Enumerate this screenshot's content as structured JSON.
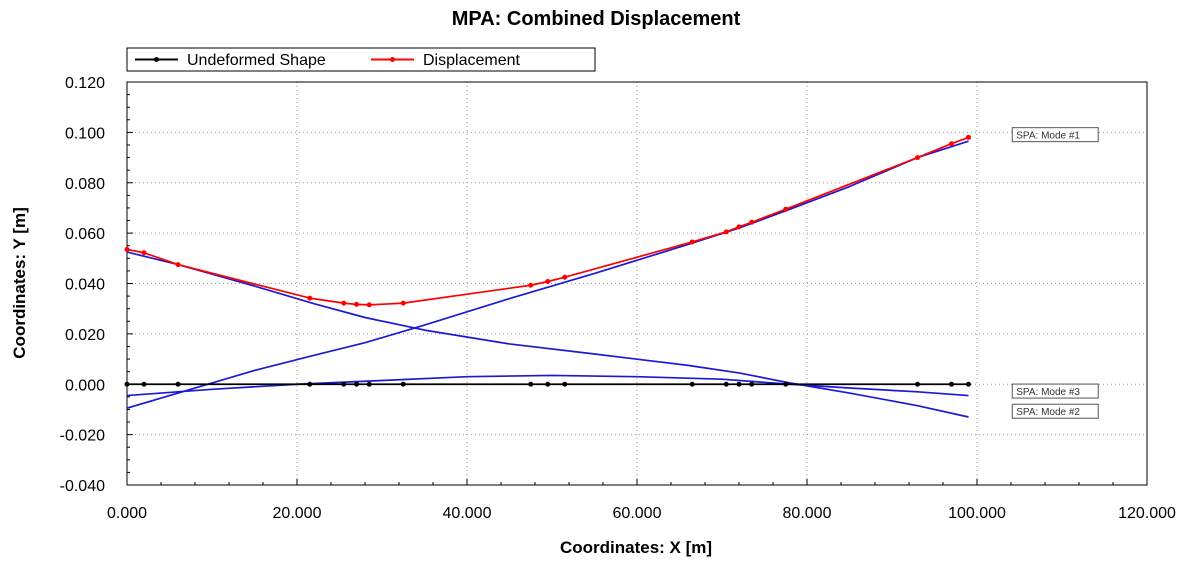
{
  "chart_data": {
    "type": "line",
    "title": "MPA: Combined Displacement",
    "xlabel": "Coordinates: X [m]",
    "ylabel": "Coordinates: Y [m]",
    "xlim": [
      0,
      120
    ],
    "ylim": [
      -0.04,
      0.12
    ],
    "xticks": [
      0,
      20,
      40,
      60,
      80,
      100,
      120
    ],
    "yticks": [
      -0.04,
      -0.02,
      0.0,
      0.02,
      0.04,
      0.06,
      0.08,
      0.1,
      0.12
    ],
    "xtick_labels": [
      "0.000",
      "20.000",
      "40.000",
      "60.000",
      "80.000",
      "100.000",
      "120.000"
    ],
    "ytick_labels": [
      "-0.040",
      "-0.020",
      "0.000",
      "0.020",
      "0.040",
      "0.060",
      "0.080",
      "0.100",
      "0.120"
    ],
    "grid": true,
    "legend_position": "top-left",
    "series": [
      {
        "name": "Undeformed Shape",
        "color": "#000000",
        "markers": true,
        "x": [
          0,
          2,
          6,
          21.5,
          25.5,
          27,
          28.5,
          32.5,
          47.5,
          49.5,
          51.5,
          66.5,
          70.5,
          72,
          73.5,
          77.5,
          93,
          97,
          99
        ],
        "y": [
          0,
          0,
          0,
          0,
          0,
          0,
          0,
          0,
          0,
          0,
          0,
          0,
          0,
          0,
          0,
          0,
          0,
          0,
          0
        ]
      },
      {
        "name": "Displacement",
        "color": "#ff0000",
        "markers": true,
        "x": [
          0,
          2,
          6,
          21.5,
          25.5,
          27,
          28.5,
          32.5,
          47.5,
          49.5,
          51.5,
          66.5,
          70.5,
          72,
          73.5,
          77.5,
          93,
          97,
          99
        ],
        "y": [
          0.0535,
          0.0522,
          0.0475,
          0.0342,
          0.0322,
          0.0317,
          0.0315,
          0.0322,
          0.0393,
          0.0408,
          0.0425,
          0.0565,
          0.0605,
          0.0625,
          0.0643,
          0.0695,
          0.09,
          0.0955,
          0.098
        ]
      },
      {
        "color": "#1a1ad6",
        "markers": false,
        "x": [
          0,
          6,
          15,
          22,
          28,
          35,
          45,
          55,
          66,
          72,
          78,
          85,
          93,
          99
        ],
        "y": [
          -0.0095,
          -0.0035,
          0.0055,
          0.0115,
          0.0165,
          0.0235,
          0.034,
          0.044,
          0.0555,
          0.062,
          0.0695,
          0.0785,
          0.09,
          0.0965
        ]
      },
      {
        "color": "#1a1ad6",
        "markers": false,
        "x": [
          0,
          6,
          15,
          22,
          28,
          35,
          45,
          55,
          66,
          72,
          78,
          85,
          93,
          99
        ],
        "y": [
          0.0525,
          0.0475,
          0.039,
          0.032,
          0.0265,
          0.0215,
          0.016,
          0.012,
          0.0075,
          0.0045,
          0.0005,
          -0.0035,
          -0.0085,
          -0.013
        ]
      },
      {
        "color": "#1a1ad6",
        "markers": false,
        "x": [
          0,
          10,
          20,
          30,
          40,
          50,
          60,
          70,
          78,
          85,
          93,
          99
        ],
        "y": [
          -0.0045,
          -0.002,
          0.0,
          0.0015,
          0.003,
          0.0035,
          0.003,
          0.002,
          0.0,
          -0.0015,
          -0.003,
          -0.0045
        ]
      }
    ],
    "annotations": [
      {
        "text": "SPA: Mode #1",
        "x": 104.5,
        "y": 0.0975
      },
      {
        "text": "SPA: Mode #3",
        "x": 104.5,
        "y": -0.0043
      },
      {
        "text": "SPA: Mode #2",
        "x": 104.5,
        "y": -0.0123
      }
    ]
  }
}
